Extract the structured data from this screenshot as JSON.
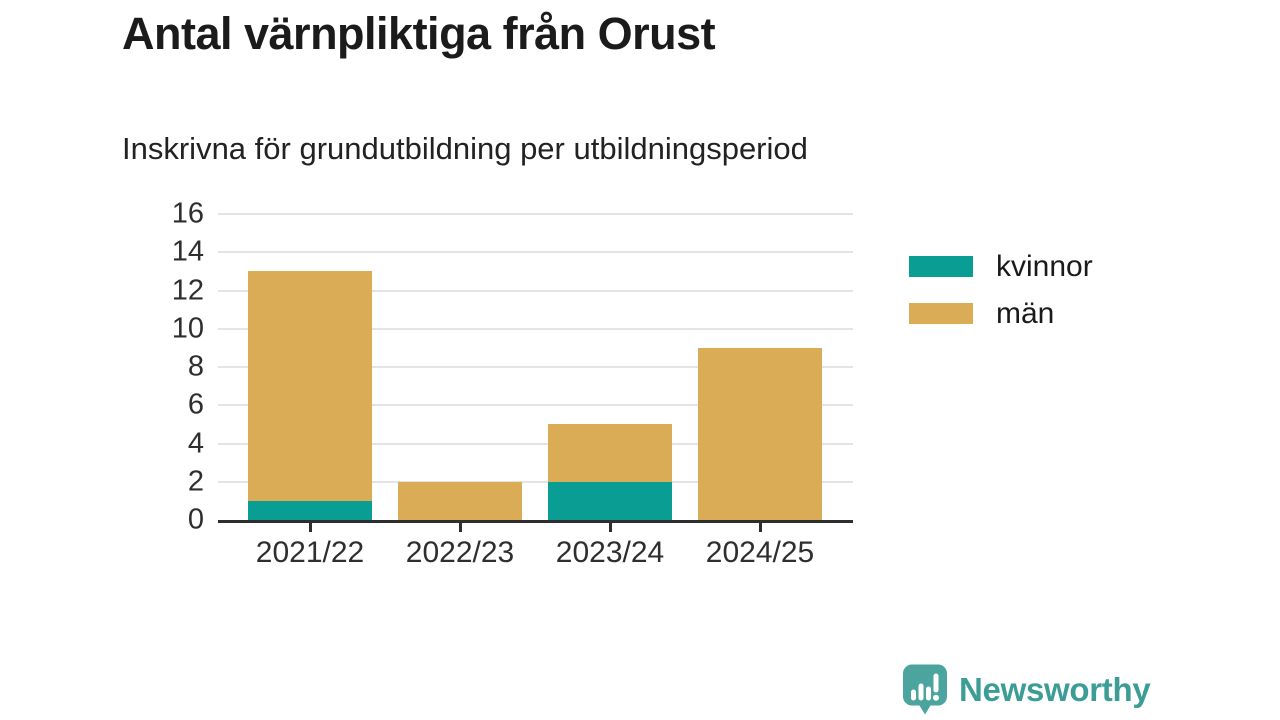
{
  "header": {
    "title": "Antal värnpliktiga från Orust",
    "subtitle": "Inskrivna för grundutbildning per utbildningsperiod"
  },
  "chart_data": {
    "type": "bar",
    "stacked": true,
    "title": "Antal värnpliktiga från Orust",
    "subtitle": "Inskrivna för grundutbildning per utbildningsperiod",
    "categories": [
      "2021/22",
      "2022/23",
      "2023/24",
      "2024/25"
    ],
    "series": [
      {
        "name": "kvinnor",
        "color": "#0a9d94",
        "values": [
          1,
          0,
          2,
          0
        ]
      },
      {
        "name": "män",
        "color": "#d9ac55",
        "values": [
          12,
          2,
          3,
          9
        ]
      }
    ],
    "totals": [
      13,
      2,
      5,
      9
    ],
    "ylim": [
      0,
      16
    ],
    "yticks": [
      0,
      2,
      4,
      6,
      8,
      10,
      12,
      14,
      16
    ],
    "grid": "horizontal",
    "legend_position": "right",
    "colors": {
      "axis": "#2e2e2e",
      "gridline": "#e4e4e4",
      "tick_label": "#2e2e2e"
    }
  },
  "branding": {
    "logo_text": "Newsworthy",
    "logo_icon": "newsworthy-speech-bubble-chart-icon",
    "icon_color": "#4ba49d",
    "text_color": "#3c9d96"
  }
}
